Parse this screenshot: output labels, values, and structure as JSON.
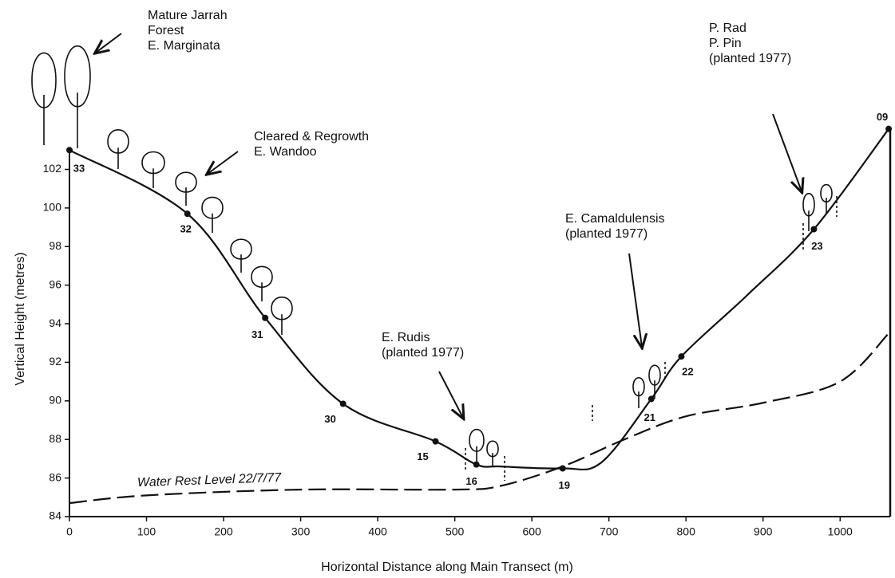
{
  "chart_data": {
    "type": "line",
    "xlabel": "Horizontal Distance along Main Transect (m)",
    "ylabel": "Vertical Height (metres)",
    "xlim": [
      0,
      1065
    ],
    "ylim": [
      84,
      104.5
    ],
    "xticks": [
      0,
      100,
      200,
      300,
      400,
      500,
      600,
      700,
      800,
      900,
      1000
    ],
    "yticks": [
      84,
      86,
      88,
      90,
      92,
      94,
      96,
      98,
      100,
      102
    ],
    "series": [
      {
        "color": "#111111",
        "style": "solid",
        "x": [
          0,
          153,
          254,
          355,
          475,
          528,
          560,
          640,
          690,
          755,
          794,
          880,
          966,
          1063
        ],
        "values": [
          103.0,
          99.7,
          94.3,
          89.85,
          87.9,
          86.7,
          86.6,
          86.5,
          86.8,
          90.1,
          92.3,
          95.5,
          98.9,
          104.1
        ],
        "point_labels": [
          "33",
          "32",
          "31",
          "30",
          "15",
          "16",
          null,
          "19",
          null,
          "21",
          "22",
          null,
          "23",
          "09"
        ]
      },
      {
        "color": "#111111",
        "style": "dashed",
        "name": "Water Rest Level 22/7/77",
        "x": [
          0,
          100,
          300,
          500,
          560,
          640,
          720,
          800,
          900,
          1000,
          1063
        ],
        "values": [
          84.7,
          85.1,
          85.4,
          85.4,
          85.6,
          86.6,
          88.0,
          89.2,
          89.9,
          91.0,
          93.5
        ]
      }
    ],
    "annotations": [
      [
        "Mature Jarrah",
        "Forest",
        "E. Marginata"
      ],
      [
        "Cleared & Regrowth",
        "E. Wandoo"
      ],
      [
        "E. Rudis",
        "(planted 1977)"
      ],
      [
        "E. Camaldulensis",
        "(planted 1977)"
      ],
      [
        "P. Rad",
        "P. Pin",
        "(planted 1977)"
      ]
    ]
  }
}
